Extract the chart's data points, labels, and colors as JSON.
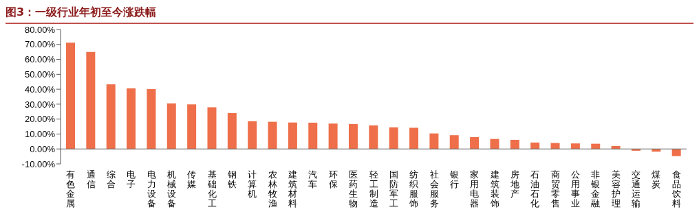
{
  "chart_data": {
    "type": "bar",
    "title": "图3：一级行业年初至今涨跌幅",
    "categories": [
      "有色金属",
      "通信",
      "综合",
      "电子",
      "电力设备",
      "机械设备",
      "传媒",
      "基础化工",
      "钢铁",
      "计算机",
      "农林牧渔",
      "建筑材料",
      "汽车",
      "环保",
      "医药生物",
      "轻工制造",
      "国防军工",
      "纺织服饰",
      "社会服务",
      "银行",
      "家用电器",
      "建筑装饰",
      "房地产",
      "石油石化",
      "商贸零售",
      "公用事业",
      "非银金融",
      "美容护理",
      "交通运输",
      "煤炭",
      "食品饮料"
    ],
    "values": [
      71.2,
      65,
      43.3,
      40.6,
      40,
      30.5,
      29.8,
      27.9,
      24,
      18.6,
      18.2,
      17.7,
      17.6,
      17,
      16.7,
      15.8,
      14.5,
      14.2,
      10.4,
      9.2,
      7.9,
      6.7,
      6.1,
      4.3,
      4,
      3.7,
      3.5,
      2,
      -1.2,
      -1.8,
      -4.8
    ],
    "color": "#ee6f4a",
    "ylim": [
      -10,
      80
    ],
    "yticks": [
      {
        "value": -10,
        "label": "-10.00%"
      },
      {
        "value": 0,
        "label": "0.00%"
      },
      {
        "value": 10,
        "label": "10.00%"
      },
      {
        "value": 20,
        "label": "20.00%"
      },
      {
        "value": 30,
        "label": "30.00%"
      },
      {
        "value": 40,
        "label": "40.00%"
      },
      {
        "value": 50,
        "label": "50.00%"
      },
      {
        "value": 60,
        "label": "60.00%"
      },
      {
        "value": 70,
        "label": "70.00%"
      },
      {
        "value": 80,
        "label": "80.00%"
      }
    ],
    "grid": false,
    "legend": false
  }
}
